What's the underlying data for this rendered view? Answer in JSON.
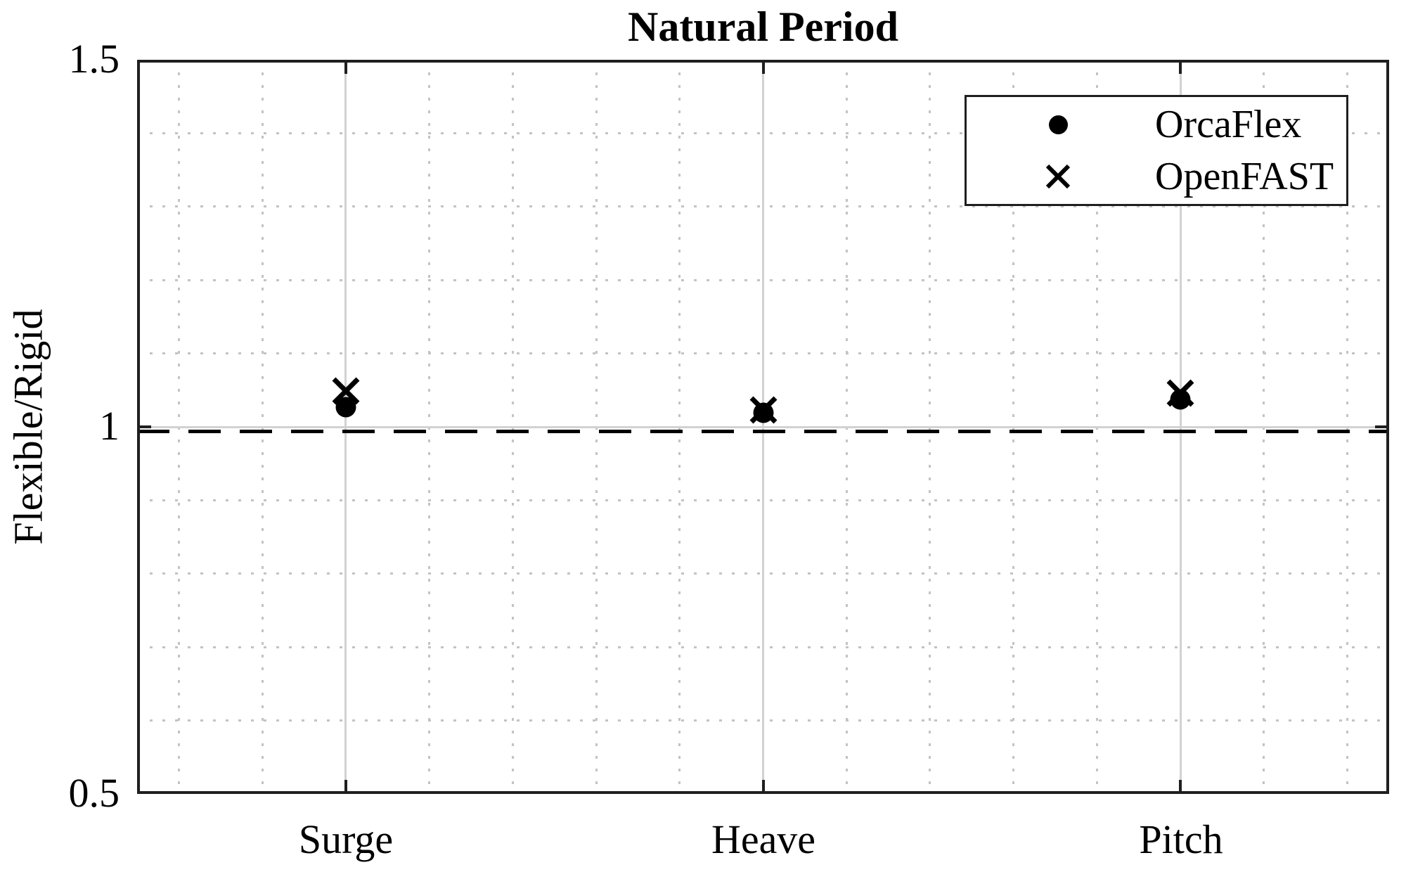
{
  "chart_data": {
    "type": "scatter",
    "title": "Natural Period",
    "xlabel": "",
    "ylabel": "Flexible/Rigid",
    "categories": [
      "Surge",
      "Heave",
      "Pitch"
    ],
    "series": [
      {
        "name": "OrcaFlex",
        "marker": "circle",
        "values": [
          1.027,
          1.019,
          1.037
        ]
      },
      {
        "name": "OpenFAST",
        "marker": "x",
        "values": [
          1.049,
          1.023,
          1.046
        ]
      }
    ],
    "reference_line": {
      "y": 1.0,
      "style": "dashed",
      "color": "#000000"
    },
    "ylim": [
      0.5,
      1.5
    ],
    "yticks": [
      0.5,
      1.0,
      1.5
    ],
    "ytick_labels": [
      "0.5",
      "1",
      "1.5"
    ],
    "grid": {
      "major_style": "solid",
      "minor_style": "dotted",
      "x_minor_step": 0.2,
      "y_minor_step": 0.1,
      "major_color": "#d2d2d2",
      "minor_color": "#c3c3c3"
    },
    "legend": {
      "position": "upper right",
      "entries": [
        "OrcaFlex",
        "OpenFAST"
      ]
    },
    "axis_color": "#1f1f1f",
    "marker_color": "#000000"
  }
}
